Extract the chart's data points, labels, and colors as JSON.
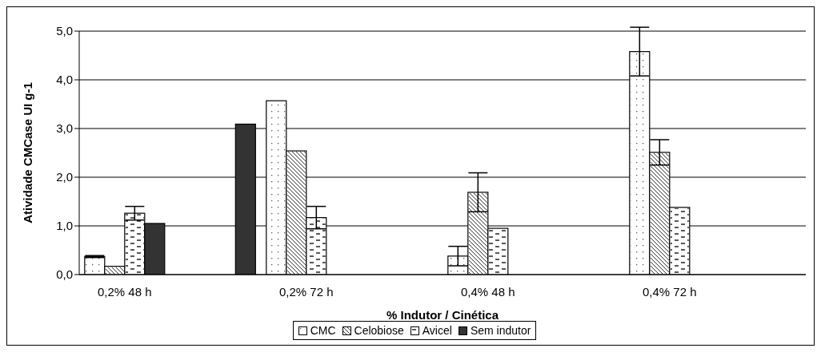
{
  "chart_data": {
    "type": "bar",
    "xlabel": "% Indutor / Cinética",
    "ylabel": "Atividade CMCase UI g-1",
    "categories": [
      "0,2% 48 h",
      null,
      "0,2% 72 h",
      null,
      "0,4% 48 h",
      null,
      "0,4% 72 h",
      null
    ],
    "series": [
      {
        "name": "CMC",
        "color": "#ffffff",
        "values": [
          0.37,
          null,
          3.57,
          null,
          0.38,
          null,
          4.58,
          null
        ],
        "errors": [
          0.02,
          null,
          null,
          null,
          0.2,
          null,
          0.5,
          null
        ]
      },
      {
        "name": "Celobiose",
        "color": "#ffffff",
        "values": [
          0.17,
          null,
          2.54,
          null,
          1.69,
          null,
          2.51,
          null
        ],
        "errors": [
          null,
          null,
          null,
          null,
          0.4,
          null,
          0.26,
          null
        ]
      },
      {
        "name": "Avicel",
        "color": "#ffffff",
        "values": [
          1.26,
          null,
          1.17,
          null,
          0.95,
          null,
          1.38,
          null
        ],
        "errors": [
          0.14,
          null,
          0.23,
          null,
          null,
          null,
          null,
          null
        ]
      },
      {
        "name": "Sem indutor",
        "color": "#333333",
        "values": [
          1.05,
          3.09,
          null,
          null,
          null,
          null,
          null,
          null
        ]
      }
    ],
    "ylim": [
      0,
      5
    ],
    "yticks": [
      {
        "value": 0,
        "label": "0,0"
      },
      {
        "value": 1,
        "label": "1,0"
      },
      {
        "value": 2,
        "label": "2,0"
      },
      {
        "value": 3,
        "label": "3,0"
      },
      {
        "value": 4,
        "label": "4,0"
      },
      {
        "value": 5,
        "label": "5,0"
      }
    ],
    "grid": "y",
    "legend": "bottom"
  }
}
